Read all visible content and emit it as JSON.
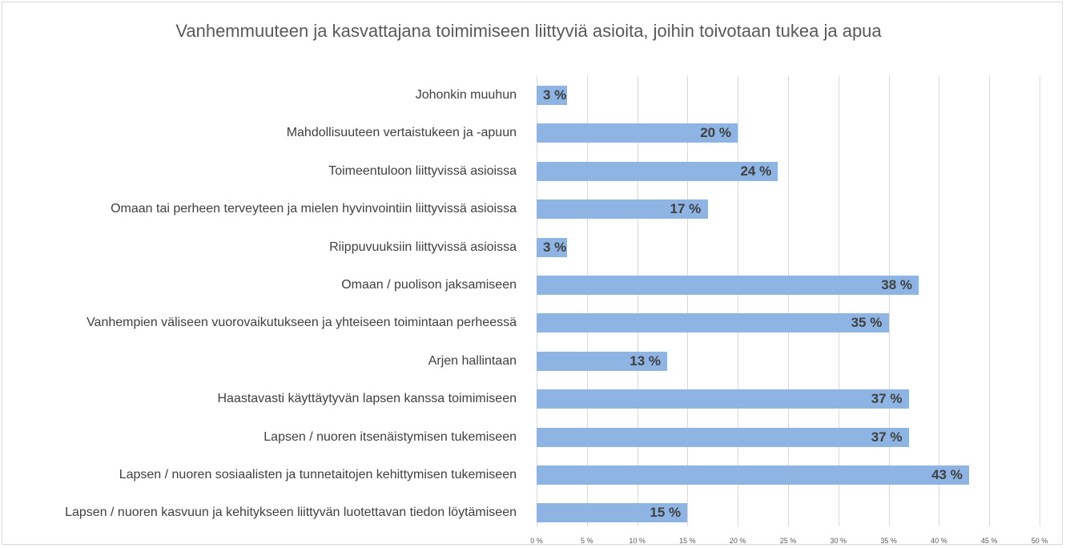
{
  "chart_data": {
    "type": "bar",
    "orientation": "horizontal",
    "title": "Vanhemmuuteen ja kasvattajana toimimiseen liittyviä asioita, joihin toivotaan tukea ja apua",
    "categories": [
      "Johonkin muuhun",
      "Mahdollisuuteen vertaistukeen ja -apuun",
      "Toimeentuloon liittyvissä asioissa",
      "Omaan tai perheen terveyteen ja mielen hyvinvointiin liittyvissä asioissa",
      "Riippuvuuksiin liittyvissä asioissa",
      "Omaan / puolison jaksamiseen",
      "Vanhempien väliseen vuorovaikutukseen ja yhteiseen toimintaan perheessä",
      "Arjen hallintaan",
      "Haastavasti käyttäytyvän lapsen kanssa toimimiseen",
      "Lapsen / nuoren itsenäistymisen tukemiseen",
      "Lapsen / nuoren sosiaalisten ja tunnetaitojen kehittymisen tukemiseen",
      "Lapsen / nuoren kasvuun ja kehitykseen liittyvän luotettavan tiedon löytämiseen"
    ],
    "values": [
      3,
      20,
      24,
      17,
      3,
      38,
      35,
      13,
      37,
      37,
      43,
      15
    ],
    "value_labels": [
      "3 %",
      "20 %",
      "24 %",
      "17 %",
      "3 %",
      "38 %",
      "35 %",
      "13 %",
      "37 %",
      "37 %",
      "43 %",
      "15 %"
    ],
    "color": "#8eb4e3",
    "xlim": [
      0,
      50
    ],
    "xticks": [
      {
        "value": 0,
        "label": "0 %"
      },
      {
        "value": 5,
        "label": "5 %"
      },
      {
        "value": 10,
        "label": "10 %"
      },
      {
        "value": 15,
        "label": "15 %"
      },
      {
        "value": 20,
        "label": "20 %"
      },
      {
        "value": 25,
        "label": "25 %"
      },
      {
        "value": 30,
        "label": "30 %"
      },
      {
        "value": 35,
        "label": "35 %"
      },
      {
        "value": 40,
        "label": "40 %"
      },
      {
        "value": 45,
        "label": "45 %"
      },
      {
        "value": 50,
        "label": "50 %"
      }
    ],
    "grid": true
  }
}
